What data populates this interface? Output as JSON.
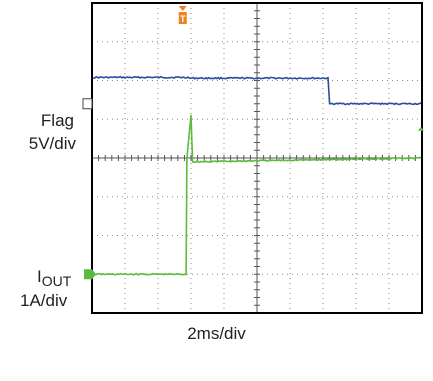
{
  "chart_data": {
    "type": "line",
    "title": "",
    "xlabel": "2ms/div",
    "grid": true,
    "x_divisions": 10,
    "y_divisions": 8,
    "x_unit": "ms",
    "x_per_div": 2,
    "xlim": [
      0,
      20
    ],
    "series": [
      {
        "name": "Flag",
        "scale_label": "5V/div",
        "unit": "V",
        "v_per_div": 5,
        "ref_div": 5.4,
        "color": "#2a4e9e",
        "points": [
          [
            0,
            3.4
          ],
          [
            5.8,
            3.4
          ],
          [
            5.9,
            3.3
          ],
          [
            14.3,
            3.3
          ],
          [
            14.4,
            0
          ],
          [
            20,
            0
          ]
        ]
      },
      {
        "name": "IOUT",
        "name_main": "I",
        "name_sub": "OUT",
        "scale_label": "1A/div",
        "unit": "A",
        "a_per_div": 1,
        "ref_div": 1.0,
        "color": "#5cba3c",
        "points": [
          [
            0,
            0
          ],
          [
            5.7,
            0
          ],
          [
            5.75,
            3.0
          ],
          [
            6.0,
            4.1
          ],
          [
            6.1,
            2.9
          ],
          [
            20,
            3.0
          ]
        ]
      }
    ],
    "trigger_marker": {
      "label": "T",
      "x": 5.5,
      "color": "#f07f1f"
    },
    "colors": {
      "grid": "#888888",
      "frame": "#000000",
      "background": "#ffffff"
    }
  }
}
